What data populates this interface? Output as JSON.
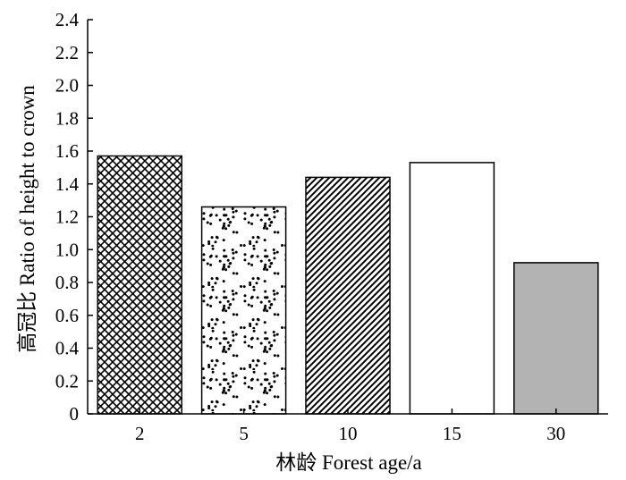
{
  "chart_data": {
    "type": "bar",
    "title": "",
    "xlabel": "林龄 Forest age/a",
    "ylabel": "高冠比 Ratio of height to crown",
    "categories": [
      "2",
      "5",
      "10",
      "15",
      "30"
    ],
    "values": [
      1.57,
      1.26,
      1.44,
      1.53,
      0.92
    ],
    "ylim": [
      0,
      2.4
    ],
    "yticks": [
      0,
      0.2,
      0.4,
      0.6,
      0.8,
      1.0,
      1.2,
      1.4,
      1.6,
      1.8,
      2.0,
      2.2,
      2.4
    ],
    "ytick_labels": [
      "0",
      "0.2",
      "0.4",
      "0.6",
      "0.8",
      "1.0",
      "1.2",
      "1.4",
      "1.6",
      "1.8",
      "2.0",
      "2.2",
      "2.4"
    ],
    "bar_fills": [
      "crosshatch",
      "dots",
      "diagonal-lines",
      "white",
      "gray"
    ],
    "gray_color": "#b3b3b3",
    "grid": false,
    "legend": "none"
  }
}
